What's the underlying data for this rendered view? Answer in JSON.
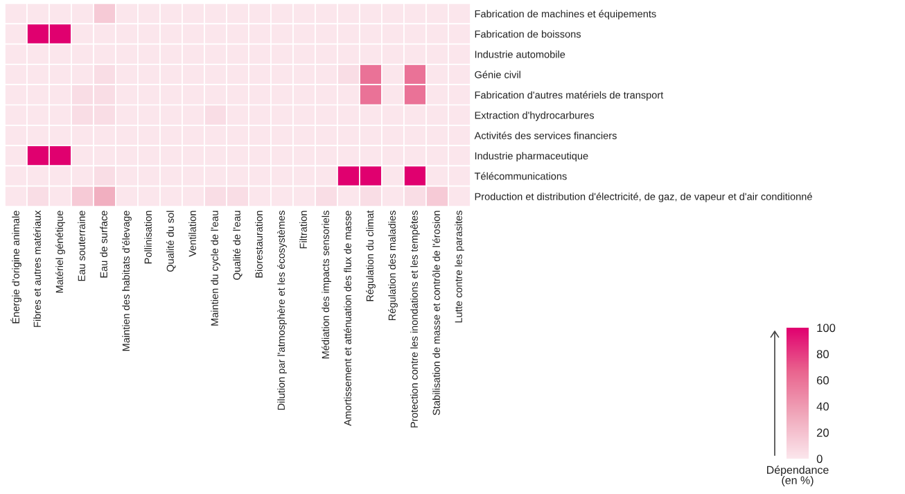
{
  "chart_data": {
    "type": "heatmap",
    "categories": [
      "Énergie d'origine animale",
      "Fibres et autres matériaux",
      "Matériel génétique",
      "Eau souterraine",
      "Eau de surface",
      "Maintien des habitats d'élevage",
      "Pollinisation",
      "Qualité du sol",
      "Ventilation",
      "Maintien du cycle de l'eau",
      "Qualité de l'eau",
      "Biorestauration",
      "Dilution par l'atmosphère et les écosystèmes",
      "Filtration",
      "Médiation des impacts sensoriels",
      "Amortissement et atténuation des flux de masse",
      "Régulation du climat",
      "Régulation des maladies",
      "Protection contre les inondations et les tempêtes",
      "Stabilisation de masse et contrôle de l'érosion",
      "Lutte contre les parasites"
    ],
    "y_categories": [
      "Fabrication de machines et équipements",
      "Fabrication de boissons",
      "Industrie automobile",
      "Génie civil",
      "Fabrication d'autres matériels de transport",
      "Extraction d'hydrocarbures",
      "Activités des services financiers",
      "Industrie pharmaceutique",
      "Télécommunications",
      "Production et distribution d'électricité, de gaz, de vapeur et d'air conditionné"
    ],
    "cells": [
      [
        0,
        0,
        0,
        0,
        15,
        0,
        0,
        0,
        0,
        0,
        0,
        0,
        0,
        0,
        0,
        0,
        0,
        0,
        0,
        0,
        0
      ],
      [
        0,
        100,
        100,
        0,
        0,
        0,
        0,
        0,
        0,
        0,
        0,
        0,
        0,
        0,
        0,
        0,
        0,
        0,
        0,
        0,
        0
      ],
      [
        0,
        0,
        0,
        0,
        0,
        0,
        0,
        0,
        0,
        0,
        0,
        0,
        0,
        0,
        0,
        0,
        0,
        0,
        0,
        0,
        0
      ],
      [
        0,
        0,
        0,
        0,
        5,
        0,
        0,
        0,
        0,
        0,
        0,
        0,
        0,
        0,
        0,
        5,
        60,
        0,
        60,
        0,
        0
      ],
      [
        0,
        0,
        0,
        5,
        5,
        0,
        0,
        0,
        0,
        0,
        0,
        0,
        0,
        0,
        0,
        0,
        60,
        0,
        60,
        0,
        0
      ],
      [
        0,
        0,
        0,
        5,
        5,
        0,
        0,
        0,
        0,
        5,
        0,
        0,
        0,
        0,
        0,
        0,
        0,
        0,
        0,
        0,
        0
      ],
      [
        0,
        0,
        0,
        0,
        0,
        0,
        0,
        0,
        0,
        0,
        0,
        0,
        0,
        0,
        0,
        0,
        0,
        0,
        0,
        0,
        0
      ],
      [
        0,
        100,
        100,
        0,
        0,
        0,
        0,
        0,
        0,
        0,
        0,
        0,
        0,
        0,
        0,
        0,
        0,
        0,
        0,
        0,
        0
      ],
      [
        0,
        0,
        0,
        0,
        5,
        0,
        0,
        0,
        0,
        0,
        0,
        0,
        0,
        0,
        0,
        100,
        100,
        0,
        100,
        0,
        0
      ],
      [
        0,
        5,
        0,
        15,
        30,
        0,
        0,
        0,
        0,
        5,
        5,
        0,
        0,
        0,
        5,
        0,
        5,
        0,
        5,
        15,
        0
      ]
    ],
    "clim": [
      0,
      100
    ],
    "cticks": [
      0,
      20,
      40,
      60,
      80,
      100
    ],
    "clabel": "Dépendance\n(en %)"
  }
}
